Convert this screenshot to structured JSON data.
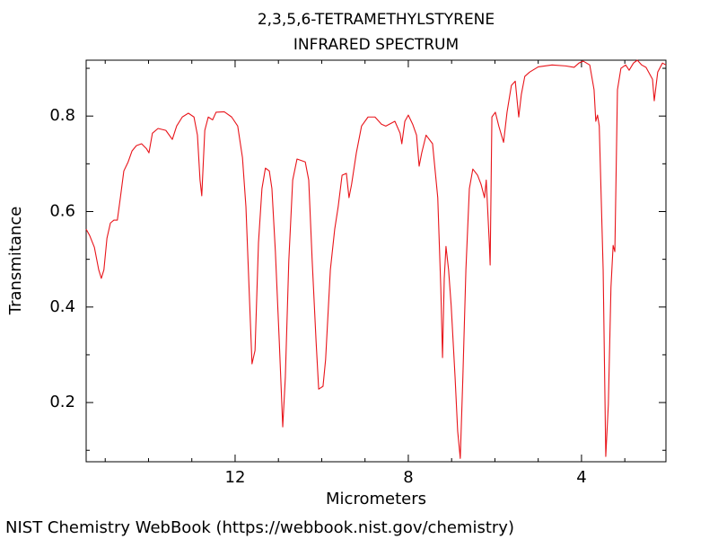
{
  "chart_data": {
    "type": "line",
    "title": "2,3,5,6-TETRAMETHYLSTYRENE",
    "subtitle": "INFRARED SPECTRUM",
    "x_label": "Micrometers",
    "y_label": "Transmitance",
    "color": "#e8141a",
    "xlim": [
      15.44,
      2.05
    ],
    "ylim": [
      0.076,
      0.917
    ],
    "xticks": [
      12,
      8,
      4
    ],
    "yticks": [
      0.2,
      0.4,
      0.6,
      0.8
    ],
    "xminorticks": [
      15,
      14,
      13,
      11,
      10,
      9,
      7,
      6,
      5,
      3
    ],
    "yminorticks": [
      0.1,
      0.3,
      0.5,
      0.7,
      0.9
    ],
    "x": [
      15.44,
      15.36,
      15.25,
      15.15,
      15.09,
      15.03,
      14.96,
      14.88,
      14.8,
      14.72,
      14.65,
      14.57,
      14.47,
      14.38,
      14.28,
      14.16,
      14.05,
      13.99,
      13.91,
      13.78,
      13.6,
      13.45,
      13.35,
      13.22,
      13.08,
      12.95,
      12.87,
      12.81,
      12.77,
      12.7,
      12.62,
      12.52,
      12.44,
      12.25,
      12.08,
      11.94,
      11.83,
      11.75,
      11.67,
      11.61,
      11.54,
      11.46,
      11.38,
      11.3,
      11.21,
      11.15,
      11.07,
      10.98,
      10.9,
      10.84,
      10.76,
      10.67,
      10.57,
      10.38,
      10.3,
      10.22,
      10.13,
      10.07,
      9.97,
      9.91,
      9.8,
      9.7,
      9.62,
      9.53,
      9.43,
      9.37,
      9.31,
      9.2,
      9.08,
      8.93,
      8.77,
      8.62,
      8.52,
      8.31,
      8.19,
      8.15,
      8.08,
      8.0,
      7.9,
      7.81,
      7.75,
      7.69,
      7.59,
      7.44,
      7.32,
      7.25,
      7.21,
      7.17,
      7.13,
      7.07,
      7.01,
      6.92,
      6.86,
      6.8,
      6.74,
      6.67,
      6.59,
      6.51,
      6.4,
      6.32,
      6.24,
      6.2,
      6.13,
      6.11,
      6.07,
      5.99,
      5.91,
      5.8,
      5.72,
      5.62,
      5.53,
      5.45,
      5.39,
      5.31,
      5.2,
      5.0,
      4.68,
      4.37,
      4.17,
      4.06,
      3.96,
      3.81,
      3.71,
      3.67,
      3.63,
      3.59,
      3.5,
      3.44,
      3.38,
      3.32,
      3.27,
      3.23,
      3.17,
      3.09,
      2.98,
      2.9,
      2.8,
      2.71,
      2.61,
      2.51,
      2.36,
      2.32,
      2.24,
      2.13,
      2.05
    ],
    "values": [
      0.563,
      0.55,
      0.525,
      0.478,
      0.46,
      0.478,
      0.544,
      0.576,
      0.582,
      0.582,
      0.629,
      0.685,
      0.704,
      0.727,
      0.738,
      0.742,
      0.732,
      0.723,
      0.764,
      0.774,
      0.77,
      0.751,
      0.779,
      0.798,
      0.806,
      0.798,
      0.76,
      0.666,
      0.633,
      0.77,
      0.798,
      0.792,
      0.808,
      0.809,
      0.798,
      0.779,
      0.713,
      0.61,
      0.422,
      0.281,
      0.309,
      0.535,
      0.648,
      0.691,
      0.685,
      0.648,
      0.516,
      0.328,
      0.149,
      0.253,
      0.497,
      0.666,
      0.71,
      0.704,
      0.666,
      0.497,
      0.328,
      0.228,
      0.234,
      0.29,
      0.478,
      0.563,
      0.61,
      0.676,
      0.68,
      0.629,
      0.657,
      0.723,
      0.779,
      0.798,
      0.798,
      0.783,
      0.779,
      0.789,
      0.764,
      0.742,
      0.789,
      0.802,
      0.783,
      0.76,
      0.695,
      0.723,
      0.76,
      0.742,
      0.629,
      0.441,
      0.294,
      0.46,
      0.527,
      0.478,
      0.403,
      0.253,
      0.14,
      0.083,
      0.253,
      0.478,
      0.648,
      0.689,
      0.676,
      0.657,
      0.629,
      0.666,
      0.535,
      0.488,
      0.798,
      0.808,
      0.779,
      0.745,
      0.808,
      0.864,
      0.873,
      0.798,
      0.845,
      0.883,
      0.892,
      0.903,
      0.907,
      0.905,
      0.902,
      0.911,
      0.915,
      0.907,
      0.855,
      0.789,
      0.802,
      0.779,
      0.478,
      0.087,
      0.196,
      0.441,
      0.529,
      0.516,
      0.855,
      0.9,
      0.907,
      0.896,
      0.911,
      0.917,
      0.907,
      0.902,
      0.877,
      0.832,
      0.892,
      0.911,
      0.907
    ]
  },
  "footer": "NIST Chemistry WebBook (https://webbook.nist.gov/chemistry)"
}
